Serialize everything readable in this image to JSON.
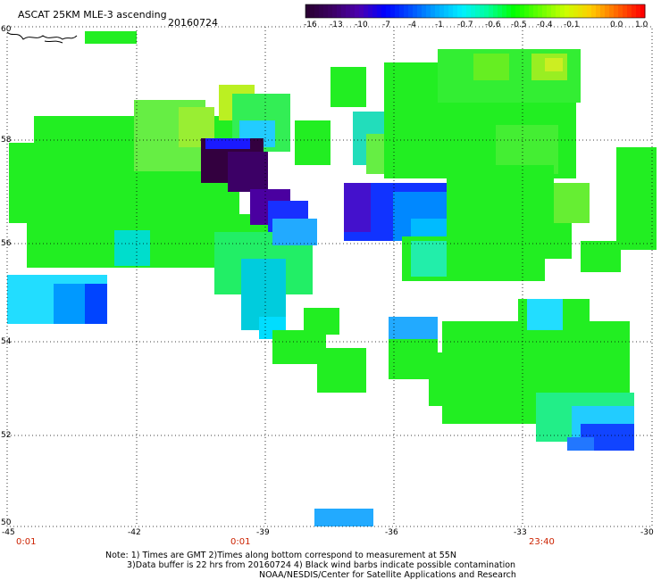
{
  "header": {
    "title": "ASCAT 25KM MLE-3 ascending",
    "date": "20160724"
  },
  "colorbar": {
    "labels": [
      "-16",
      "-13",
      "-10",
      "-7",
      "-4",
      "-1",
      "-0.7",
      "-0.6",
      "-0.5",
      "-0.4",
      "-0.1",
      "0.0",
      "1.0"
    ],
    "colors": [
      "#2a0033",
      "#3c0066",
      "#4b00b0",
      "#0000ff",
      "#0050ff",
      "#00a8ff",
      "#00f0ff",
      "#00ff99",
      "#00ff00",
      "#66ff00",
      "#ccff00",
      "#ffcc00",
      "#ff6600",
      "#ff0000"
    ]
  },
  "map": {
    "lat_labels": [
      "60",
      "58",
      "56",
      "54",
      "52",
      "50"
    ],
    "lon_labels": [
      "-45",
      "-42",
      "-39",
      "-36",
      "-33",
      "-30"
    ],
    "time_labels": [
      {
        "lon": "-45",
        "text": "0:01"
      },
      {
        "lon": "-39",
        "text": "0:01"
      },
      {
        "lon": "-33",
        "text": "23:40"
      }
    ]
  },
  "notes": {
    "line1": "Note: 1) Times are GMT 2)Times along bottom correspond to measurement at 55N",
    "line2": "3)Data buffer is 22 hrs from 20160724 4) Black wind barbs indicate possible contamination",
    "line3": "NOAA/NESDIS/Center for Satellite Applications and Research"
  }
}
